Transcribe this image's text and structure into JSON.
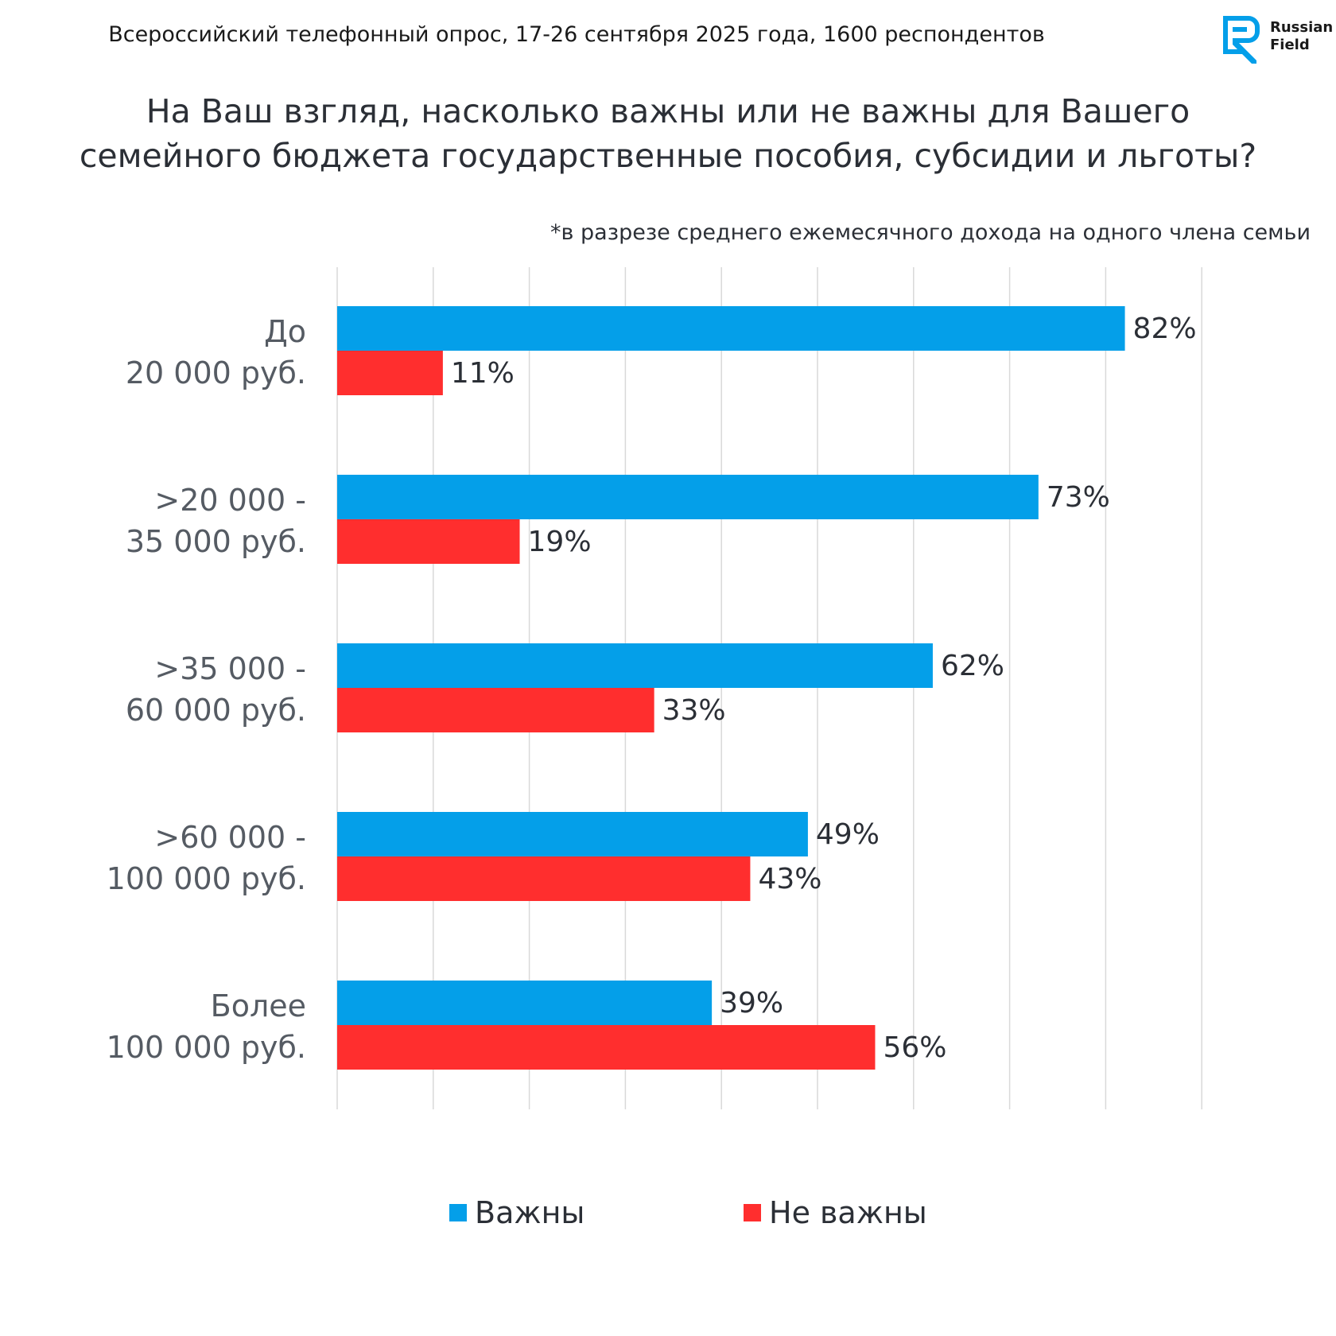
{
  "header": {
    "survey_line": "Всероссийский телефонный опрос, 17-26 сентября 2025 года, 1600 респондентов",
    "logo_text_1": "Russian",
    "logo_text_2": "Field"
  },
  "title_line_1": "На Ваш взгляд, насколько важны или не важны для Вашего",
  "title_line_2": "семейного бюджета государственные пособия, субсидии и льготы?",
  "subtitle": "*в разрезе среднего ежемесячного дохода на одного члена семьи",
  "colors": {
    "important": "#049fe9",
    "not_important": "#ff2e2e",
    "gridline": "#d9d9d9",
    "brand": "#049fe9"
  },
  "chart_data": {
    "type": "bar",
    "orientation": "horizontal",
    "categories": [
      [
        "До",
        "20 000 руб."
      ],
      [
        ">20 000 -",
        "35 000 руб."
      ],
      [
        ">35 000 -",
        "60 000 руб."
      ],
      [
        ">60 000 -",
        "100 000 руб."
      ],
      [
        "Более",
        "100 000 руб."
      ]
    ],
    "series": [
      {
        "name": "Важны",
        "values": [
          82,
          73,
          62,
          49,
          39
        ],
        "labels": [
          "82%",
          "73%",
          "62%",
          "49%",
          "39%"
        ]
      },
      {
        "name": "Не важны",
        "values": [
          11,
          19,
          33,
          43,
          56
        ],
        "labels": [
          "11%",
          "19%",
          "33%",
          "43%",
          "56%"
        ]
      }
    ],
    "xlim": [
      0,
      90
    ],
    "grid": true,
    "legend_position": "bottom"
  }
}
